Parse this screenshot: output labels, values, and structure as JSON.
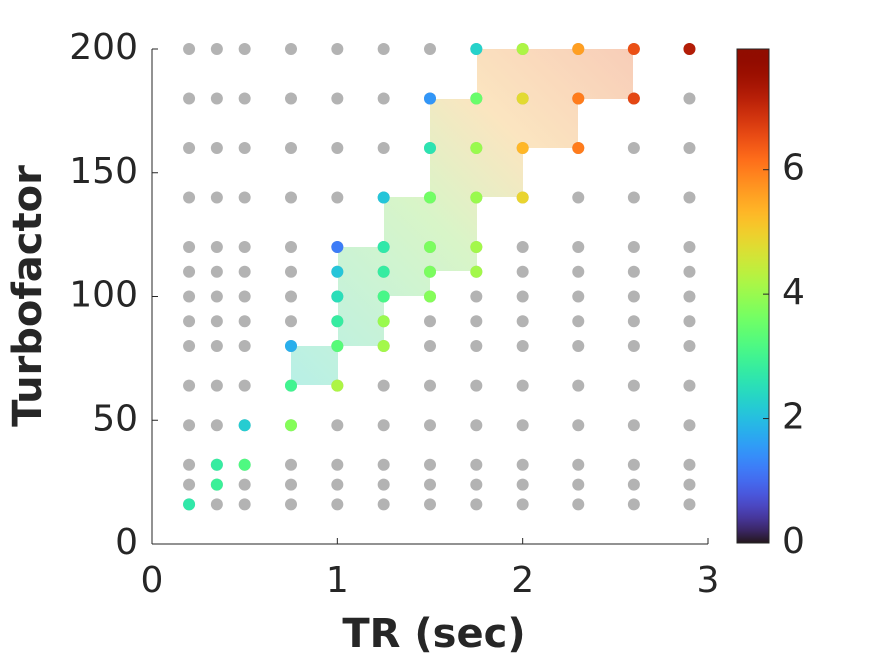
{
  "chart_data": {
    "type": "scatter",
    "xlabel": "TR (sec)",
    "ylabel": "Turbofactor",
    "xlim": [
      0,
      3
    ],
    "ylim": [
      0,
      200
    ],
    "xticks": [
      0,
      1,
      2,
      3
    ],
    "yticks": [
      0,
      50,
      100,
      150,
      200
    ],
    "grid": false,
    "sample_color": "#b3b3b3",
    "sampled_x": [
      0.2,
      0.35,
      0.5,
      0.75,
      1.0,
      1.25,
      1.5,
      1.75,
      2.0,
      2.3,
      2.6,
      2.9
    ],
    "sampled_y": [
      200,
      180,
      160,
      140,
      120,
      110,
      100,
      90,
      80,
      64,
      48,
      32,
      24,
      16
    ],
    "colormap": "turbo",
    "clim": [
      0,
      7.94
    ],
    "cticks": [
      0,
      2,
      4,
      6
    ],
    "points": {
      "x": [
        1.75,
        2.0,
        2.3,
        2.6,
        2.9,
        1.5,
        1.75,
        2.0,
        2.3,
        2.6,
        1.5,
        1.75,
        2.0,
        2.3,
        1.25,
        1.5,
        1.75,
        2.0,
        1.0,
        1.25,
        1.5,
        1.75,
        1.0,
        1.25,
        1.5,
        1.75,
        1.0,
        1.25,
        1.5,
        1.0,
        1.25,
        0.75,
        1.0,
        1.25,
        0.75,
        1.0,
        0.5,
        0.75,
        0.35,
        0.5,
        0.35,
        0.2
      ],
      "y": [
        200,
        200,
        200,
        200,
        200,
        180,
        180,
        180,
        180,
        180,
        160,
        160,
        160,
        160,
        140,
        140,
        140,
        140,
        120,
        120,
        120,
        120,
        110,
        110,
        110,
        110,
        100,
        100,
        100,
        90,
        90,
        80,
        80,
        80,
        64,
        64,
        48,
        48,
        32,
        32,
        24,
        16
      ],
      "values": [
        2.3,
        4.2,
        5.6,
        6.5,
        7.2,
        1.5,
        3.5,
        4.8,
        6.0,
        6.6,
        2.6,
        4.0,
        5.3,
        6.0,
        2.1,
        3.6,
        4.0,
        4.9,
        1.2,
        2.7,
        3.7,
        4.1,
        2.1,
        2.8,
        3.7,
        4.1,
        2.5,
        3.1,
        3.8,
        2.8,
        4.0,
        1.8,
        3.3,
        4.1,
        3.0,
        4.2,
        2.2,
        3.8,
        2.8,
        3.2,
        2.9,
        2.7
      ]
    }
  }
}
